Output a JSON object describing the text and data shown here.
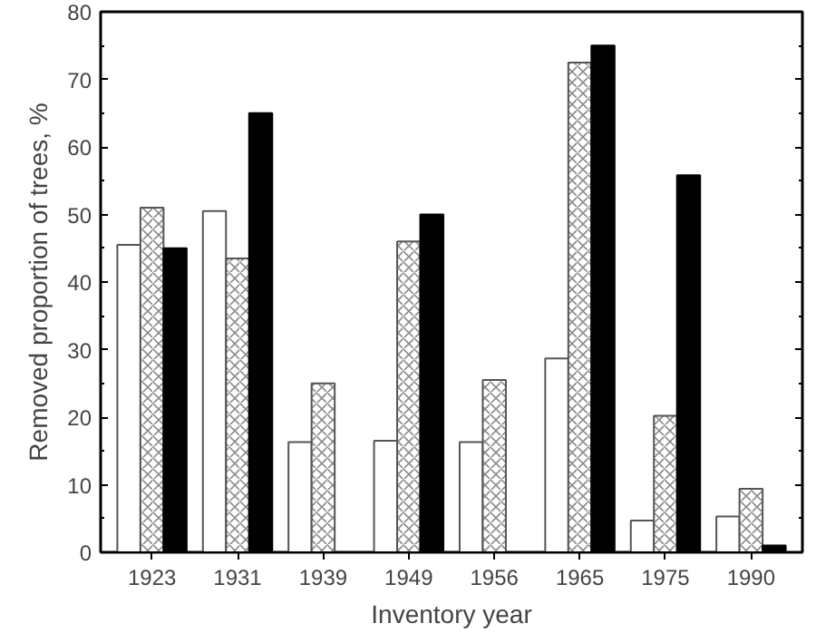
{
  "chart_data": {
    "type": "bar",
    "xlabel": "Inventory year",
    "ylabel": "Removed proportion of trees, %",
    "categories": [
      "1923",
      "1931",
      "1939",
      "1949",
      "1956",
      "1965",
      "1975",
      "1990"
    ],
    "series": [
      {
        "color": "#ffffff",
        "values": [
          45.5,
          50.5,
          16.3,
          16.5,
          16.3,
          28.7,
          4.7,
          5.3
        ]
      },
      {
        "color": "#ffffff",
        "values": [
          51,
          43.5,
          25,
          46,
          25.5,
          72.5,
          20.2,
          9.4
        ]
      },
      {
        "color": "#000000",
        "values": [
          45,
          65,
          null,
          50,
          null,
          75,
          55.8,
          1.0
        ]
      }
    ],
    "ylim": [
      0,
      80
    ],
    "yticks": [
      0,
      10,
      20,
      30,
      40,
      50,
      60,
      70,
      80
    ],
    "grid": false
  }
}
